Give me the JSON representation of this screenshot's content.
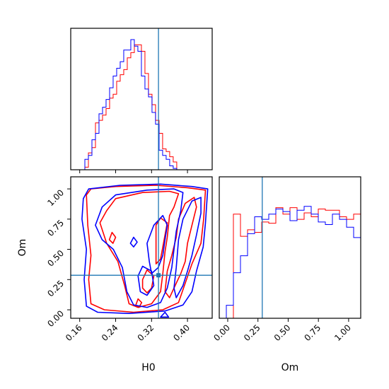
{
  "chart_data": {
    "type": "corner",
    "parameters": [
      "H0",
      "Om"
    ],
    "truth": {
      "H0": 0.3354,
      "Om": 0.2857
    },
    "xlabels": {
      "bottom_left": "H0",
      "bottom_right": "Om"
    },
    "ylabel_left": "Om",
    "H0_axis": {
      "range": [
        0.14,
        0.455
      ],
      "ticks": [
        "0.16",
        "0.24",
        "0.32",
        "0.40"
      ],
      "tick_values": [
        0.16,
        0.24,
        0.32,
        0.4
      ]
    },
    "Om_axis": {
      "range": [
        -0.07,
        1.1
      ],
      "ticks": [
        "0.00",
        "0.25",
        "0.50",
        "0.75",
        "1.00"
      ],
      "tick_values": [
        0.0,
        0.25,
        0.5,
        0.75,
        1.0
      ]
    },
    "hist_H0": {
      "bin_start": 0.14,
      "bin_width": 0.00787,
      "red": [
        0,
        0,
        0,
        0,
        0.02,
        0.13,
        0.17,
        0.36,
        0.38,
        0.42,
        0.47,
        0.55,
        0.58,
        0.68,
        0.73,
        0.77,
        0.86,
        0.9,
        0.96,
        0.96,
        0.91,
        0.74,
        0.58,
        0.5,
        0.38,
        0.28,
        0.16,
        0.14,
        0.1,
        0.06
      ],
      "blue": [
        0,
        0,
        0,
        0,
        0.08,
        0.11,
        0.23,
        0.28,
        0.43,
        0.48,
        0.54,
        0.63,
        0.72,
        0.78,
        0.83,
        0.92,
        0.92,
        1.0,
        0.95,
        0.91,
        0.72,
        0.62,
        0.56,
        0.44,
        0.35,
        0.15,
        0.11,
        0.08,
        0.03,
        0.01
      ]
    },
    "hist_Om": {
      "bin_start": -0.07,
      "bin_width": 0.0585,
      "red": [
        0,
        0,
        0.8,
        0.63,
        0.68,
        0.66,
        0.74,
        0.73,
        0.85,
        0.8,
        0.85,
        0.76,
        0.81,
        0.78,
        0.84,
        0.83,
        0.83,
        0.78,
        0.76,
        0.8,
        0.05,
        0,
        0,
        0
      ],
      "blue": [
        0,
        0.1,
        0.35,
        0.48,
        0.65,
        0.78,
        0.76,
        0.8,
        0.84,
        0.82,
        0.75,
        0.83,
        0.86,
        0.8,
        0.74,
        0.72,
        0.8,
        0.76,
        0.7,
        0.62,
        0.05,
        0,
        0,
        0
      ]
    },
    "contours_2d": {
      "red": [
        [
          [
            0.175,
            0.95
          ],
          [
            0.185,
            1.0
          ],
          [
            0.24,
            1.02
          ],
          [
            0.33,
            1.03
          ],
          [
            0.4,
            1.01
          ],
          [
            0.44,
            0.99
          ],
          [
            0.436,
            0.75
          ],
          [
            0.43,
            0.55
          ],
          [
            0.41,
            0.38
          ],
          [
            0.395,
            0.22
          ],
          [
            0.38,
            0.06
          ],
          [
            0.345,
            0.0
          ],
          [
            0.28,
            -0.02
          ],
          [
            0.215,
            0.0
          ],
          [
            0.185,
            0.05
          ],
          [
            0.18,
            0.25
          ],
          [
            0.185,
            0.45
          ],
          [
            0.178,
            0.7
          ]
        ],
        [
          [
            0.205,
            0.72
          ],
          [
            0.22,
            0.82
          ],
          [
            0.24,
            0.92
          ],
          [
            0.3,
            0.97
          ],
          [
            0.36,
            0.98
          ],
          [
            0.38,
            0.96
          ],
          [
            0.37,
            0.85
          ],
          [
            0.36,
            0.78
          ],
          [
            0.355,
            0.6
          ],
          [
            0.35,
            0.48
          ],
          [
            0.345,
            0.3
          ],
          [
            0.34,
            0.15
          ],
          [
            0.32,
            0.05
          ],
          [
            0.29,
            0.02
          ],
          [
            0.27,
            0.05
          ],
          [
            0.26,
            0.2
          ],
          [
            0.245,
            0.4
          ],
          [
            0.22,
            0.55
          ]
        ],
        [
          [
            0.375,
            0.6
          ],
          [
            0.38,
            0.75
          ],
          [
            0.395,
            0.88
          ],
          [
            0.415,
            0.93
          ],
          [
            0.42,
            0.85
          ],
          [
            0.41,
            0.7
          ],
          [
            0.4,
            0.55
          ],
          [
            0.395,
            0.4
          ],
          [
            0.385,
            0.3
          ],
          [
            0.375,
            0.22
          ],
          [
            0.36,
            0.1
          ],
          [
            0.35,
            0.15
          ],
          [
            0.355,
            0.32
          ],
          [
            0.365,
            0.45
          ]
        ],
        [
          [
            0.33,
            0.7
          ],
          [
            0.34,
            0.76
          ],
          [
            0.355,
            0.72
          ],
          [
            0.35,
            0.62
          ],
          [
            0.345,
            0.52
          ],
          [
            0.34,
            0.42
          ],
          [
            0.33,
            0.38
          ],
          [
            0.33,
            0.5
          ]
        ],
        [
          [
            0.3,
            0.25
          ],
          [
            0.31,
            0.33
          ],
          [
            0.325,
            0.28
          ],
          [
            0.32,
            0.18
          ],
          [
            0.31,
            0.14
          ],
          [
            0.3,
            0.18
          ]
        ],
        [
          [
            0.226,
            0.58
          ],
          [
            0.232,
            0.64
          ],
          [
            0.24,
            0.6
          ],
          [
            0.234,
            0.55
          ]
        ],
        [
          [
            0.285,
            0.04
          ],
          [
            0.29,
            0.09
          ],
          [
            0.298,
            0.06
          ],
          [
            0.292,
            0.02
          ]
        ]
      ],
      "blue": [
        [
          [
            0.168,
            0.92
          ],
          [
            0.18,
            1.0
          ],
          [
            0.25,
            1.03
          ],
          [
            0.34,
            1.04
          ],
          [
            0.41,
            1.02
          ],
          [
            0.445,
            1.0
          ],
          [
            0.44,
            0.72
          ],
          [
            0.435,
            0.52
          ],
          [
            0.42,
            0.32
          ],
          [
            0.41,
            0.15
          ],
          [
            0.39,
            0.04
          ],
          [
            0.35,
            -0.01
          ],
          [
            0.27,
            -0.03
          ],
          [
            0.2,
            -0.02
          ],
          [
            0.175,
            0.03
          ],
          [
            0.17,
            0.25
          ],
          [
            0.175,
            0.5
          ],
          [
            0.165,
            0.75
          ]
        ],
        [
          [
            0.195,
            0.7
          ],
          [
            0.21,
            0.85
          ],
          [
            0.24,
            0.95
          ],
          [
            0.31,
            0.99
          ],
          [
            0.37,
            1.0
          ],
          [
            0.39,
            0.97
          ],
          [
            0.385,
            0.82
          ],
          [
            0.375,
            0.65
          ],
          [
            0.37,
            0.5
          ],
          [
            0.365,
            0.35
          ],
          [
            0.355,
            0.18
          ],
          [
            0.34,
            0.06
          ],
          [
            0.31,
            0.02
          ],
          [
            0.28,
            0.04
          ],
          [
            0.265,
            0.15
          ],
          [
            0.255,
            0.35
          ],
          [
            0.235,
            0.5
          ],
          [
            0.21,
            0.58
          ]
        ],
        [
          [
            0.38,
            0.58
          ],
          [
            0.39,
            0.75
          ],
          [
            0.41,
            0.9
          ],
          [
            0.43,
            0.93
          ],
          [
            0.43,
            0.8
          ],
          [
            0.42,
            0.62
          ],
          [
            0.41,
            0.45
          ],
          [
            0.4,
            0.32
          ],
          [
            0.39,
            0.2
          ],
          [
            0.375,
            0.1
          ],
          [
            0.37,
            0.18
          ],
          [
            0.375,
            0.35
          ]
        ],
        [
          [
            0.31,
            0.55
          ],
          [
            0.325,
            0.7
          ],
          [
            0.345,
            0.78
          ],
          [
            0.355,
            0.7
          ],
          [
            0.35,
            0.58
          ],
          [
            0.345,
            0.45
          ],
          [
            0.335,
            0.35
          ],
          [
            0.32,
            0.3
          ],
          [
            0.315,
            0.4
          ]
        ],
        [
          [
            0.29,
            0.28
          ],
          [
            0.3,
            0.36
          ],
          [
            0.32,
            0.32
          ],
          [
            0.325,
            0.2
          ],
          [
            0.31,
            0.12
          ],
          [
            0.295,
            0.15
          ]
        ],
        [
          [
            0.273,
            0.55
          ],
          [
            0.28,
            0.6
          ],
          [
            0.288,
            0.56
          ],
          [
            0.28,
            0.52
          ]
        ],
        [
          [
            0.34,
            -0.06
          ],
          [
            0.35,
            -0.02
          ],
          [
            0.358,
            -0.06
          ]
        ]
      ]
    }
  }
}
